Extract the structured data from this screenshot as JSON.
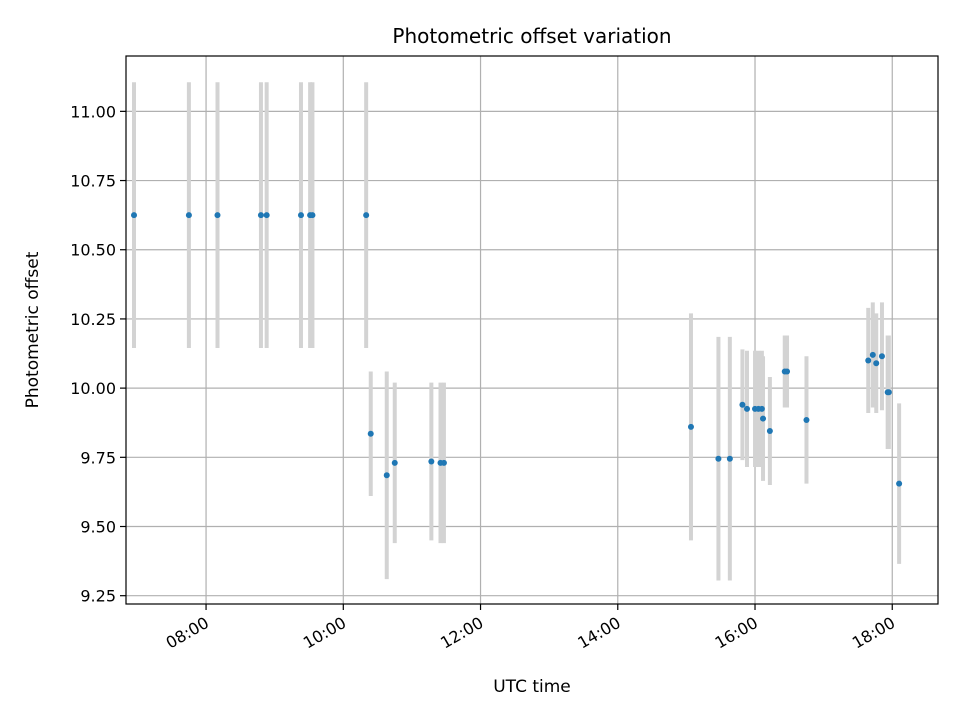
{
  "chart_data": {
    "type": "scatter",
    "title": "Photometric offset variation",
    "xlabel": "UTC time",
    "ylabel": "Photometric offset",
    "xlim": [
      "06:50",
      "18:40"
    ],
    "ylim": [
      9.22,
      11.2
    ],
    "grid": true,
    "x_ticks": [
      "08:00",
      "10:00",
      "12:00",
      "14:00",
      "16:00",
      "18:00"
    ],
    "y_ticks": [
      "9.25",
      "9.50",
      "9.75",
      "10.00",
      "10.25",
      "10.50",
      "10.75",
      "11.00"
    ],
    "colors": {
      "point": "#1f77b4",
      "errorbar": "#d3d3d3",
      "grid": "#b0b0b0"
    },
    "points": [
      {
        "x": "06:57",
        "y": 10.625,
        "err": 0.48
      },
      {
        "x": "07:45",
        "y": 10.625,
        "err": 0.48
      },
      {
        "x": "08:10",
        "y": 10.625,
        "err": 0.48
      },
      {
        "x": "08:48",
        "y": 10.625,
        "err": 0.48
      },
      {
        "x": "08:53",
        "y": 10.625,
        "err": 0.48
      },
      {
        "x": "09:23",
        "y": 10.625,
        "err": 0.48
      },
      {
        "x": "09:31",
        "y": 10.625,
        "err": 0.48
      },
      {
        "x": "09:33",
        "y": 10.625,
        "err": 0.48
      },
      {
        "x": "10:20",
        "y": 10.625,
        "err": 0.48
      },
      {
        "x": "10:24",
        "y": 9.835,
        "err": 0.225
      },
      {
        "x": "10:38",
        "y": 9.685,
        "err": 0.375
      },
      {
        "x": "10:45",
        "y": 9.73,
        "err": 0.29
      },
      {
        "x": "11:17",
        "y": 9.735,
        "err": 0.285
      },
      {
        "x": "11:25",
        "y": 9.73,
        "err": 0.29
      },
      {
        "x": "11:28",
        "y": 9.73,
        "err": 0.29
      },
      {
        "x": "15:04",
        "y": 9.86,
        "err": 0.41
      },
      {
        "x": "15:28",
        "y": 9.745,
        "err": 0.44
      },
      {
        "x": "15:38",
        "y": 9.745,
        "err": 0.44
      },
      {
        "x": "15:49",
        "y": 9.94,
        "err": 0.2
      },
      {
        "x": "15:53",
        "y": 9.925,
        "err": 0.21
      },
      {
        "x": "16:00",
        "y": 9.925,
        "err": 0.21
      },
      {
        "x": "16:03",
        "y": 9.925,
        "err": 0.21
      },
      {
        "x": "16:06",
        "y": 9.925,
        "err": 0.21
      },
      {
        "x": "16:07",
        "y": 9.89,
        "err": 0.225
      },
      {
        "x": "16:13",
        "y": 9.845,
        "err": 0.195
      },
      {
        "x": "16:26",
        "y": 10.06,
        "err": 0.13
      },
      {
        "x": "16:28",
        "y": 10.06,
        "err": 0.13
      },
      {
        "x": "16:45",
        "y": 9.885,
        "err": 0.23
      },
      {
        "x": "17:39",
        "y": 10.1,
        "err": 0.19
      },
      {
        "x": "17:43",
        "y": 10.12,
        "err": 0.19
      },
      {
        "x": "17:46",
        "y": 10.09,
        "err": 0.18
      },
      {
        "x": "17:51",
        "y": 10.115,
        "err": 0.195
      },
      {
        "x": "17:56",
        "y": 9.985,
        "err": 0.205
      },
      {
        "x": "17:57",
        "y": 9.985,
        "err": 0.205
      },
      {
        "x": "18:06",
        "y": 9.655,
        "err": 0.29
      }
    ]
  }
}
